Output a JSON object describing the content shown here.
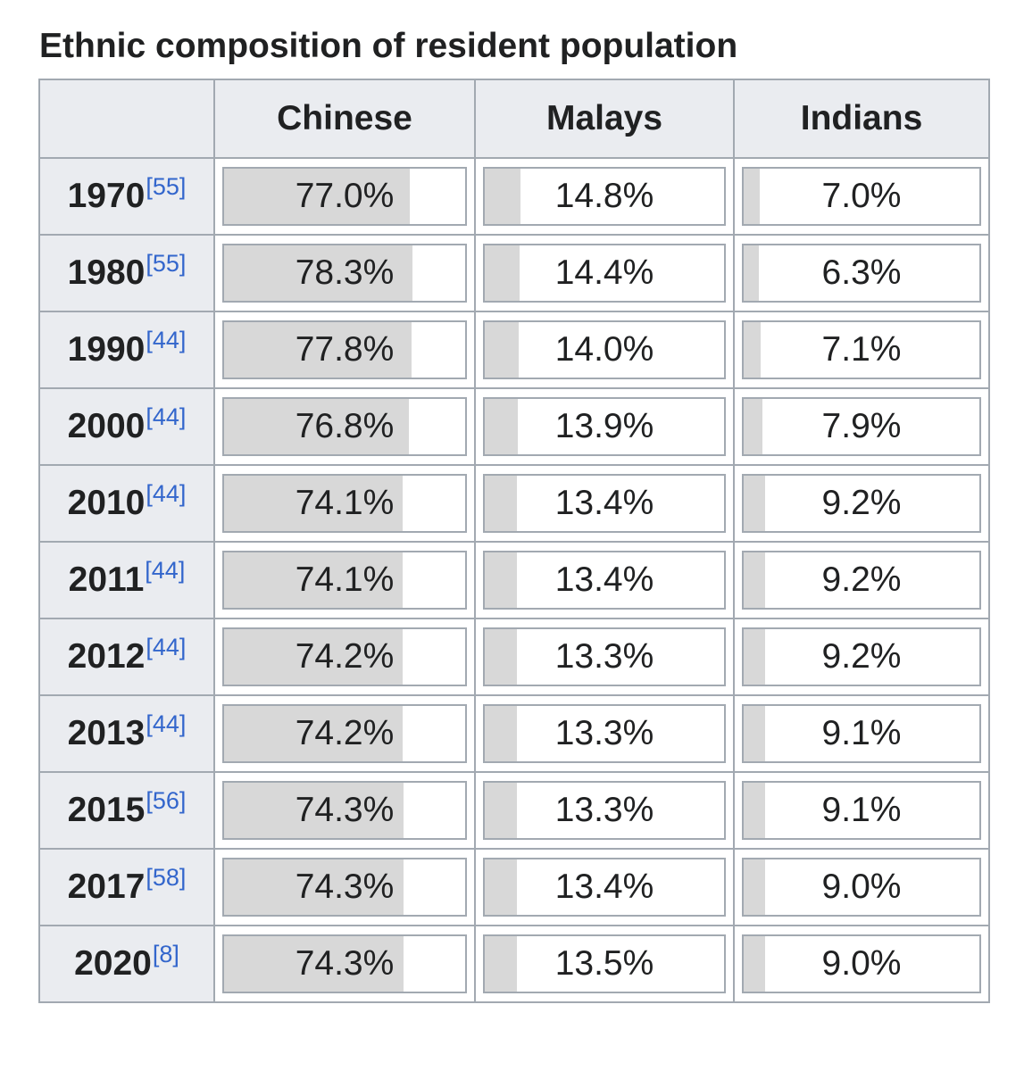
{
  "caption": "Ethnic composition of resident population",
  "columns": [
    "",
    "Chinese",
    "Malays",
    "Indians"
  ],
  "rows": [
    {
      "year": "1970",
      "ref": "[55]",
      "values": [
        {
          "text": "77.0%",
          "pct": 77.0
        },
        {
          "text": "14.8%",
          "pct": 14.8
        },
        {
          "text": "7.0%",
          "pct": 7.0
        }
      ]
    },
    {
      "year": "1980",
      "ref": "[55]",
      "values": [
        {
          "text": "78.3%",
          "pct": 78.3
        },
        {
          "text": "14.4%",
          "pct": 14.4
        },
        {
          "text": "6.3%",
          "pct": 6.3
        }
      ]
    },
    {
      "year": "1990",
      "ref": "[44]",
      "values": [
        {
          "text": "77.8%",
          "pct": 77.8
        },
        {
          "text": "14.0%",
          "pct": 14.0
        },
        {
          "text": "7.1%",
          "pct": 7.1
        }
      ]
    },
    {
      "year": "2000",
      "ref": "[44]",
      "values": [
        {
          "text": "76.8%",
          "pct": 76.8
        },
        {
          "text": "13.9%",
          "pct": 13.9
        },
        {
          "text": "7.9%",
          "pct": 7.9
        }
      ]
    },
    {
      "year": "2010",
      "ref": "[44]",
      "values": [
        {
          "text": "74.1%",
          "pct": 74.1
        },
        {
          "text": "13.4%",
          "pct": 13.4
        },
        {
          "text": "9.2%",
          "pct": 9.2
        }
      ]
    },
    {
      "year": "2011",
      "ref": "[44]",
      "values": [
        {
          "text": "74.1%",
          "pct": 74.1
        },
        {
          "text": "13.4%",
          "pct": 13.4
        },
        {
          "text": "9.2%",
          "pct": 9.2
        }
      ]
    },
    {
      "year": "2012",
      "ref": "[44]",
      "values": [
        {
          "text": "74.2%",
          "pct": 74.2
        },
        {
          "text": "13.3%",
          "pct": 13.3
        },
        {
          "text": "9.2%",
          "pct": 9.2
        }
      ]
    },
    {
      "year": "2013",
      "ref": "[44]",
      "values": [
        {
          "text": "74.2%",
          "pct": 74.2
        },
        {
          "text": "13.3%",
          "pct": 13.3
        },
        {
          "text": "9.1%",
          "pct": 9.1
        }
      ]
    },
    {
      "year": "2015",
      "ref": "[56]",
      "values": [
        {
          "text": "74.3%",
          "pct": 74.3
        },
        {
          "text": "13.3%",
          "pct": 13.3
        },
        {
          "text": "9.1%",
          "pct": 9.1
        }
      ]
    },
    {
      "year": "2017",
      "ref": "[58]",
      "values": [
        {
          "text": "74.3%",
          "pct": 74.3
        },
        {
          "text": "13.4%",
          "pct": 13.4
        },
        {
          "text": "9.0%",
          "pct": 9.0
        }
      ]
    },
    {
      "year": "2020",
      "ref": "[8]",
      "values": [
        {
          "text": "74.3%",
          "pct": 74.3
        },
        {
          "text": "13.5%",
          "pct": 13.5
        },
        {
          "text": "9.0%",
          "pct": 9.0
        }
      ]
    }
  ]
}
